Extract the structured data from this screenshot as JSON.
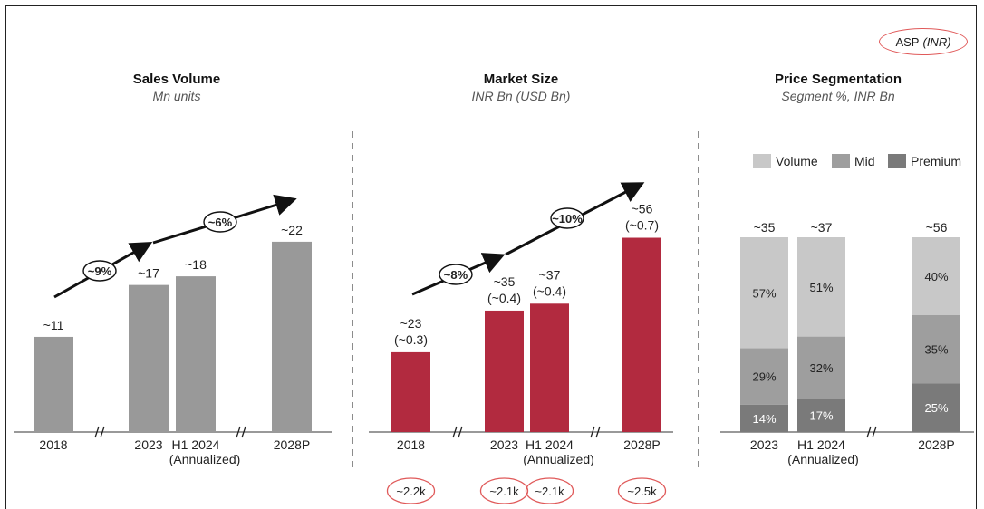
{
  "asp_badge": {
    "label": "ASP",
    "unit": "(INR)"
  },
  "chart_data": [
    {
      "type": "bar",
      "title": "Sales Volume",
      "subtitle": "Mn units",
      "categories": [
        "2018",
        "2023",
        "H1 2024",
        "2028P"
      ],
      "category_notes": [
        "",
        "",
        "(Annualized)",
        ""
      ],
      "values": [
        11,
        17,
        18,
        22
      ],
      "data_labels": [
        "~11",
        "~17",
        "~18",
        "~22"
      ],
      "growth_labels": [
        "~9%",
        "~6%"
      ],
      "color": "#999999",
      "ylim": [
        0,
        24
      ]
    },
    {
      "type": "bar",
      "title": "Market Size",
      "subtitle": "INR Bn (USD Bn)",
      "categories": [
        "2018",
        "2023",
        "H1 2024",
        "2028P"
      ],
      "category_notes": [
        "",
        "",
        "(Annualized)",
        ""
      ],
      "values": [
        23,
        35,
        37,
        56
      ],
      "data_labels": [
        "~23",
        "~35",
        "~37",
        "~56"
      ],
      "secondary_labels": [
        "(~0.3)",
        "(~0.4)",
        "(~0.4)",
        "(~0.7)"
      ],
      "asp_labels": [
        "~2.2k",
        "~2.1k",
        "~2.1k",
        "~2.5k"
      ],
      "growth_labels": [
        "~8%",
        "~10%"
      ],
      "color": "#b22a3f",
      "ylim": [
        0,
        58
      ]
    },
    {
      "type": "bar",
      "stacked": true,
      "title": "Price Segmentation",
      "subtitle": "Segment %, INR Bn",
      "categories": [
        "2023",
        "H1 2024",
        "2028P"
      ],
      "category_notes": [
        "",
        "(Annualized)",
        ""
      ],
      "totals": [
        "~35",
        "~37",
        "~56"
      ],
      "series": [
        {
          "name": "Volume",
          "values": [
            57,
            51,
            40
          ],
          "color": "#c8c8c8"
        },
        {
          "name": "Mid",
          "values": [
            29,
            32,
            35
          ],
          "color": "#9e9e9e"
        },
        {
          "name": "Premium",
          "values": [
            14,
            17,
            25
          ],
          "color": "#7a7a7a"
        }
      ],
      "segment_labels": [
        [
          "57%",
          "51%",
          "40%"
        ],
        [
          "29%",
          "32%",
          "35%"
        ],
        [
          "14%",
          "17%",
          "25%"
        ]
      ],
      "legend_position": "top-right"
    }
  ]
}
